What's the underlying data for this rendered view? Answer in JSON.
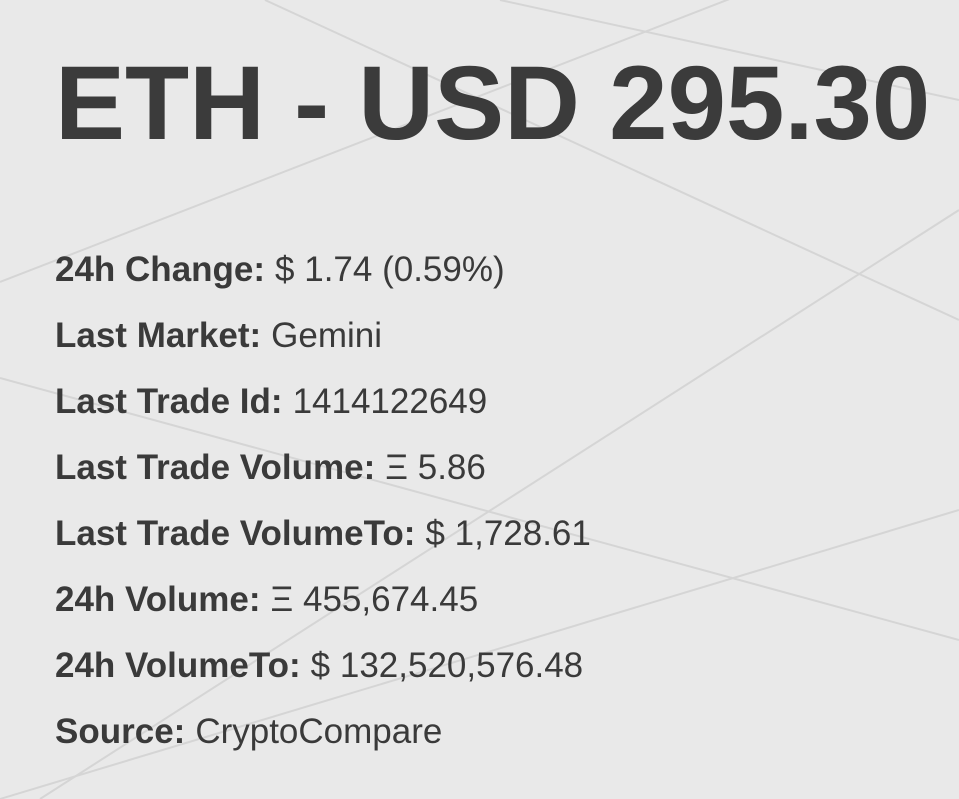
{
  "title": "ETH - USD 295.30",
  "stats": [
    {
      "label": "24h Change:",
      "value": "$ 1.74 (0.59%)"
    },
    {
      "label": "Last Market:",
      "value": "Gemini"
    },
    {
      "label": "Last Trade Id:",
      "value": "1414122649"
    },
    {
      "label": "Last Trade Volume:",
      "value": "Ξ 5.86"
    },
    {
      "label": "Last Trade VolumeTo:",
      "value": "$ 1,728.61"
    },
    {
      "label": "24h Volume:",
      "value": "Ξ 455,674.45"
    },
    {
      "label": "24h VolumeTo:",
      "value": "$ 132,520,576.48"
    },
    {
      "label": "Source:",
      "value": "CryptoCompare"
    }
  ],
  "colors": {
    "background": "#e9e9e9",
    "text": "#3a3a3a",
    "lines": "#d6d6d6"
  }
}
